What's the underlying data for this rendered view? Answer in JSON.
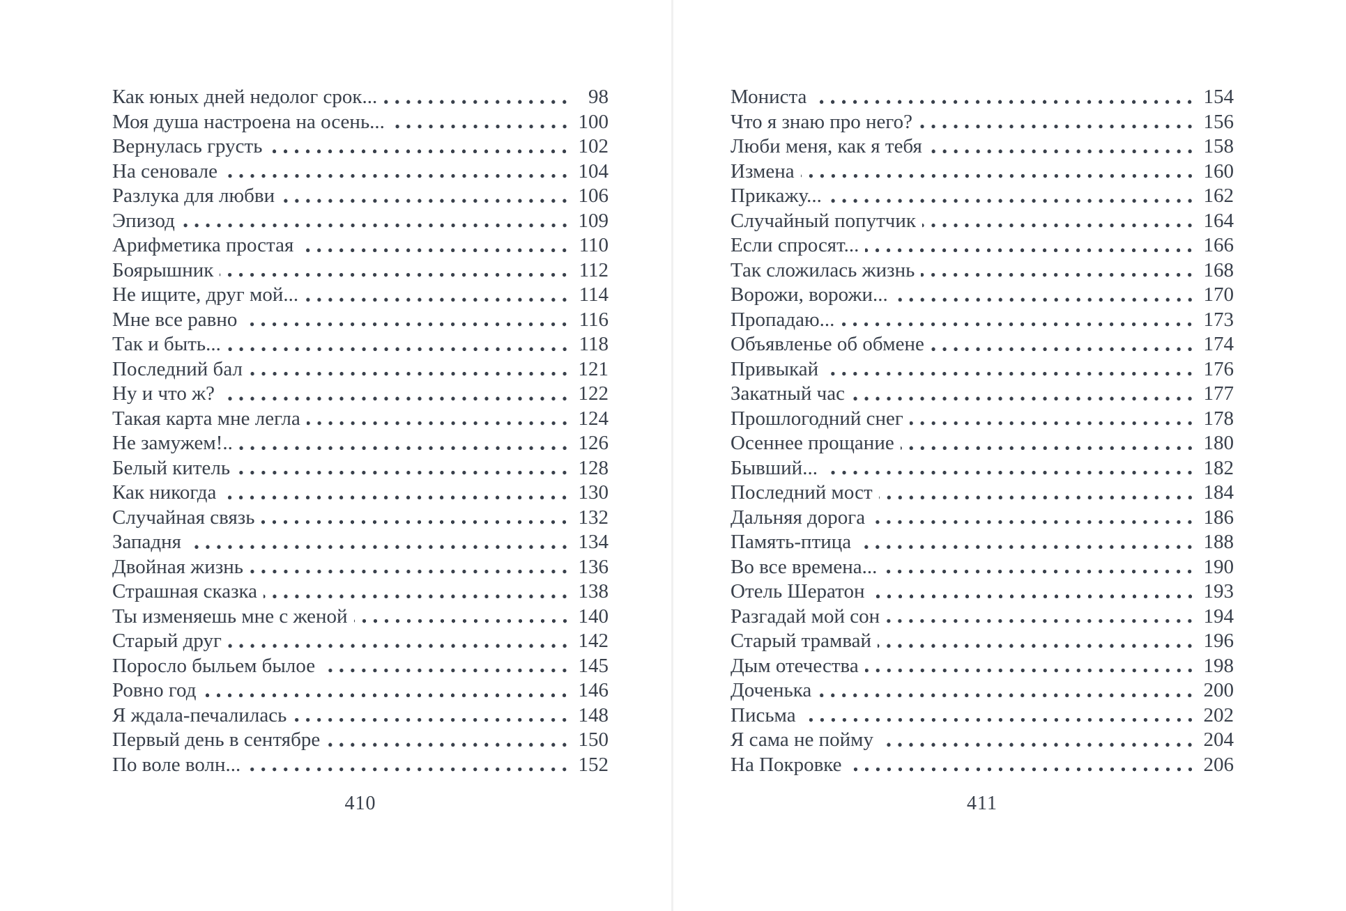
{
  "theme": {
    "ink": "#39404b",
    "paper": "#ffffff",
    "gutter_line": "#f0f0f0"
  },
  "document": {
    "kind": "book-table-of-contents-spread",
    "pages": [
      {
        "folio": "410",
        "entries": [
          {
            "title": "Как юных дней недолог срок...",
            "page": "98"
          },
          {
            "title": "Моя душа настроена на осень...",
            "page": "100"
          },
          {
            "title": "Вернулась грусть",
            "page": "102"
          },
          {
            "title": "На сеновале",
            "page": "104"
          },
          {
            "title": "Разлука для любви",
            "page": "106"
          },
          {
            "title": "Эпизод",
            "page": "109"
          },
          {
            "title": "Арифметика простая",
            "page": "110"
          },
          {
            "title": "Боярышник",
            "page": "112"
          },
          {
            "title": "Не ищите, друг мой...",
            "page": "114"
          },
          {
            "title": "Мне все равно",
            "page": "116"
          },
          {
            "title": "Так и быть...",
            "page": "118"
          },
          {
            "title": "Последний бал",
            "page": "121"
          },
          {
            "title": "Ну и что ж?",
            "page": "122"
          },
          {
            "title": "Такая карта мне легла",
            "page": "124"
          },
          {
            "title": "Не замужем!..",
            "page": "126"
          },
          {
            "title": "Белый китель",
            "page": "128"
          },
          {
            "title": "Как никогда",
            "page": "130"
          },
          {
            "title": "Случайная связь",
            "page": "132"
          },
          {
            "title": "Западня",
            "page": "134"
          },
          {
            "title": "Двойная жизнь",
            "page": "136"
          },
          {
            "title": "Страшная сказка",
            "page": "138"
          },
          {
            "title": "Ты изменяешь мне с женой",
            "page": "140"
          },
          {
            "title": "Старый друг",
            "page": "142"
          },
          {
            "title": "Поросло быльем былое",
            "page": "145"
          },
          {
            "title": "Ровно год",
            "page": "146"
          },
          {
            "title": "Я ждала-печалилась",
            "page": "148"
          },
          {
            "title": "Первый день в сентябре",
            "page": "150"
          },
          {
            "title": "По воле волн...",
            "page": "152"
          }
        ]
      },
      {
        "folio": "411",
        "entries": [
          {
            "title": "Мониста",
            "page": "154"
          },
          {
            "title": "Что я знаю про него?",
            "page": "156"
          },
          {
            "title": "Люби меня, как я тебя",
            "page": "158"
          },
          {
            "title": "Измена",
            "page": "160"
          },
          {
            "title": "Прикажу...",
            "page": "162"
          },
          {
            "title": "Случайный попутчик",
            "page": "164"
          },
          {
            "title": "Если спросят...",
            "page": "166"
          },
          {
            "title": "Так сложилась жизнь",
            "page": "168"
          },
          {
            "title": "Ворожи, ворожи...",
            "page": "170"
          },
          {
            "title": "Пропадаю...",
            "page": "173"
          },
          {
            "title": "Объявленье об обмене",
            "page": "174"
          },
          {
            "title": "Привыкай",
            "page": "176"
          },
          {
            "title": "Закатный час",
            "page": "177"
          },
          {
            "title": "Прошлогодний снег",
            "page": "178"
          },
          {
            "title": "Осеннее прощание",
            "page": "180"
          },
          {
            "title": "Бывший...",
            "page": "182"
          },
          {
            "title": "Последний мост",
            "page": "184"
          },
          {
            "title": "Дальняя дорога",
            "page": "186"
          },
          {
            "title": "Память-птица",
            "page": "188"
          },
          {
            "title": "Во все времена...",
            "page": "190"
          },
          {
            "title": "Отель Шератон",
            "page": "193"
          },
          {
            "title": "Разгадай мой сон",
            "page": "194"
          },
          {
            "title": "Старый трамвай",
            "page": "196"
          },
          {
            "title": "Дым отечества",
            "page": "198"
          },
          {
            "title": "Доченька",
            "page": "200"
          },
          {
            "title": "Письма",
            "page": "202"
          },
          {
            "title": "Я сама не пойму",
            "page": "204"
          },
          {
            "title": "На Покровке",
            "page": "206"
          }
        ]
      }
    ]
  }
}
